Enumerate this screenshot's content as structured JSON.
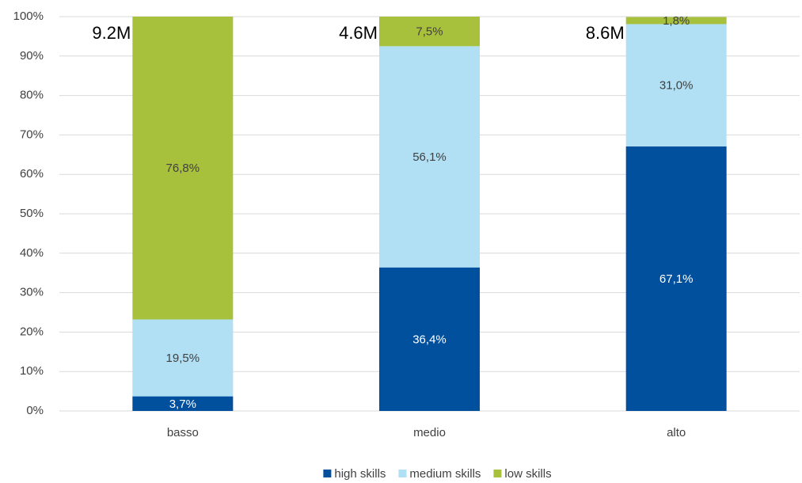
{
  "chart_data": {
    "type": "bar",
    "stacked": true,
    "categories": [
      "basso",
      "medio",
      "alto"
    ],
    "series": [
      {
        "name": "high skills",
        "color": "#00509e",
        "values": [
          3.7,
          36.4,
          67.1
        ],
        "value_labels": [
          "3,7%",
          "36,4%",
          "67,1%"
        ]
      },
      {
        "name": "medium skills",
        "color": "#b1e0f4",
        "values": [
          19.5,
          56.1,
          31.0
        ],
        "value_labels": [
          "19,5%",
          "56,1%",
          "31,0%"
        ]
      },
      {
        "name": "low skills",
        "color": "#a8c13c",
        "values": [
          76.8,
          7.5,
          1.8
        ],
        "value_labels": [
          "76,8%",
          "7,5%",
          "1,8%"
        ]
      }
    ],
    "annotations": [
      "9.2M",
      "4.6M",
      "8.6M"
    ],
    "ylim": [
      0,
      100
    ],
    "yticks": [
      {
        "value": 0,
        "label": "0%"
      },
      {
        "value": 10,
        "label": "10%"
      },
      {
        "value": 20,
        "label": "20%"
      },
      {
        "value": 30,
        "label": "30%"
      },
      {
        "value": 40,
        "label": "40%"
      },
      {
        "value": 50,
        "label": "50%"
      },
      {
        "value": 60,
        "label": "60%"
      },
      {
        "value": 70,
        "label": "70%"
      },
      {
        "value": 80,
        "label": "80%"
      },
      {
        "value": 90,
        "label": "90%"
      },
      {
        "value": 100,
        "label": "100%"
      }
    ],
    "grid": true,
    "legend": "bottom"
  }
}
